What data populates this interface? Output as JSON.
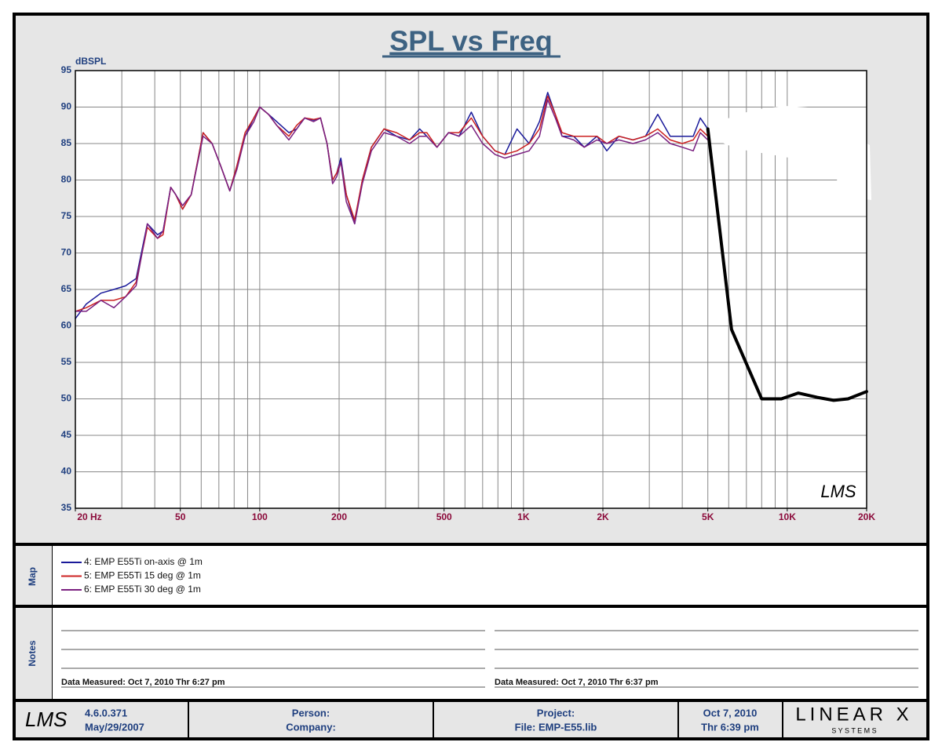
{
  "chart_data": {
    "type": "line",
    "title": "SPL vs Freq",
    "y_label": "dBSPL",
    "watermark": "LMS",
    "xscale": "log",
    "grid": true,
    "xlim": [
      20,
      20000
    ],
    "ylim": [
      35,
      95
    ],
    "yticks": [
      35,
      40,
      45,
      50,
      55,
      60,
      65,
      70,
      75,
      80,
      85,
      90,
      95
    ],
    "xticks": [
      {
        "value": 20,
        "label": "20  Hz"
      },
      50,
      100,
      200,
      500,
      {
        "value": 1000,
        "label": "1K"
      },
      {
        "value": 2000,
        "label": "2K"
      },
      {
        "value": 5000,
        "label": "5K"
      },
      {
        "value": 10000,
        "label": "10K"
      },
      {
        "value": 20000,
        "label": "20K"
      }
    ],
    "xgrid": [
      30,
      40,
      50,
      60,
      70,
      80,
      90,
      100,
      200,
      300,
      400,
      500,
      600,
      700,
      800,
      900,
      1000,
      2000,
      3000,
      4000,
      5000,
      6000,
      7000,
      8000,
      9000,
      10000
    ],
    "x": [
      20,
      22,
      25,
      28,
      31,
      34,
      37.5,
      41,
      43,
      46,
      48,
      51,
      55,
      61,
      66,
      71,
      77,
      82,
      88,
      95,
      100,
      108,
      116,
      129,
      138,
      148,
      160,
      170,
      180,
      189,
      196,
      203,
      213,
      229,
      245,
      265,
      296,
      330,
      370,
      404,
      430,
      470,
      520,
      570,
      634,
      700,
      780,
      850,
      945,
      1050,
      1150,
      1235,
      1320,
      1400,
      1550,
      1700,
      1900,
      2070,
      2300,
      2600,
      2900,
      3230,
      3600,
      4000,
      4400,
      4680,
      5000
    ],
    "series": [
      {
        "name": "4: EMP E55Ti on-axis @ 1m",
        "color": "#1a1a9a",
        "values": [
          61,
          63,
          64.5,
          65,
          65.5,
          66.5,
          74,
          72.5,
          73,
          79,
          78,
          76,
          78,
          86.5,
          85,
          82,
          78.5,
          82,
          86,
          88.5,
          90,
          89,
          88,
          86.5,
          87,
          88.5,
          88.2,
          88.5,
          85,
          80,
          81,
          83,
          78,
          74,
          80,
          84.5,
          87,
          86,
          85.5,
          87,
          86,
          84.5,
          86.5,
          86,
          89.3,
          86,
          84,
          83.5,
          87,
          85,
          88,
          92,
          89,
          86,
          86,
          84.5,
          86,
          84,
          86,
          85.5,
          86,
          89,
          86,
          86,
          86,
          88.5,
          87
        ]
      },
      {
        "name": "5: EMP E55Ti 15 deg @ 1m",
        "color": "#cc2020",
        "values": [
          62,
          62.5,
          63.5,
          63.5,
          64,
          66,
          73.5,
          72,
          72.5,
          79,
          78,
          76,
          78,
          86.5,
          85,
          82,
          78.5,
          82,
          86.5,
          88.5,
          90,
          89,
          87.5,
          86,
          87.5,
          88.5,
          88.3,
          88.5,
          85,
          80,
          81,
          82.5,
          78,
          74.5,
          80,
          84.5,
          87,
          86.5,
          85.5,
          86.5,
          86.5,
          84.5,
          86.5,
          86.5,
          88.5,
          86,
          84,
          83.5,
          84,
          85,
          87,
          91.5,
          89,
          86.5,
          86,
          86,
          86,
          85,
          86,
          85.5,
          86,
          87,
          85.5,
          85,
          85.5,
          87,
          86
        ]
      },
      {
        "name": "6: EMP E55Ti 30 deg @ 1m",
        "color": "#7a2080",
        "values": [
          62,
          62,
          63.5,
          62.5,
          64,
          65.5,
          74,
          72,
          73,
          79,
          78,
          76.5,
          78,
          86,
          85,
          82,
          78.5,
          81.5,
          86,
          88,
          90,
          89,
          87.5,
          85.5,
          87,
          88.5,
          88,
          88.5,
          85,
          79.5,
          80.5,
          82.5,
          77,
          74,
          79.5,
          84,
          86.5,
          86,
          85,
          86,
          86,
          84.5,
          86.5,
          86,
          87.5,
          85,
          83.5,
          83,
          83.5,
          84,
          86,
          91,
          88.5,
          86,
          85.5,
          84.5,
          85.5,
          85,
          85.5,
          85,
          85.5,
          86.5,
          85,
          84.5,
          84,
          86.5,
          85.5
        ]
      },
      {
        "color": "#000000",
        "line_width": 4,
        "x": [
          5000,
          6150,
          8000,
          9500,
          11000,
          13000,
          15000,
          17000,
          20000
        ],
        "values": [
          87,
          59.5,
          50,
          50,
          50.8,
          50.2,
          49.8,
          50,
          51
        ]
      }
    ]
  },
  "map_label": "Map",
  "notes": {
    "label": "Notes",
    "measured": [
      "Data Measured: Oct  7, 2010  Thr  6:27 pm",
      "Data Measured: Oct  7, 2010  Thr  6:37 pm"
    ]
  },
  "footer": {
    "logo": "LMS",
    "version": "4.6.0.371",
    "build_date": "May/29/2007",
    "person": "Person:",
    "company": "Company:",
    "project": "Project:",
    "file": "File: EMP-E55.lib",
    "date": "Oct  7, 2010",
    "time": "Thr  6:39 pm",
    "brand": "LINEAR X",
    "brand_sub": "S Y S T E M S"
  }
}
